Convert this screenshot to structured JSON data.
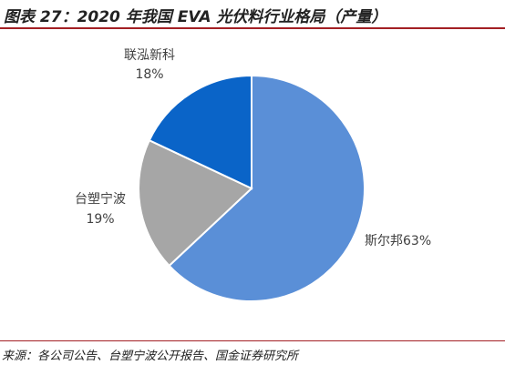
{
  "title": "图表 27：2020 年我国 EVA 光伏料行业格局（产量）",
  "source": "来源：各公司公告、台塑宁波公开报告、国金证券研究所",
  "chart_data": {
    "type": "pie",
    "title": "",
    "slices": [
      {
        "name": "斯尔邦",
        "value": 63,
        "label": "63%",
        "color": "#5a8fd7"
      },
      {
        "name": "台塑宁波",
        "value": 19,
        "label": "19%",
        "color": "#a6a6a6"
      },
      {
        "name": "联泓新科",
        "value": 18,
        "label": "18%",
        "color": "#0a64c8"
      }
    ],
    "start": "12 o'clock",
    "direction": "clockwise",
    "legend": "none"
  }
}
